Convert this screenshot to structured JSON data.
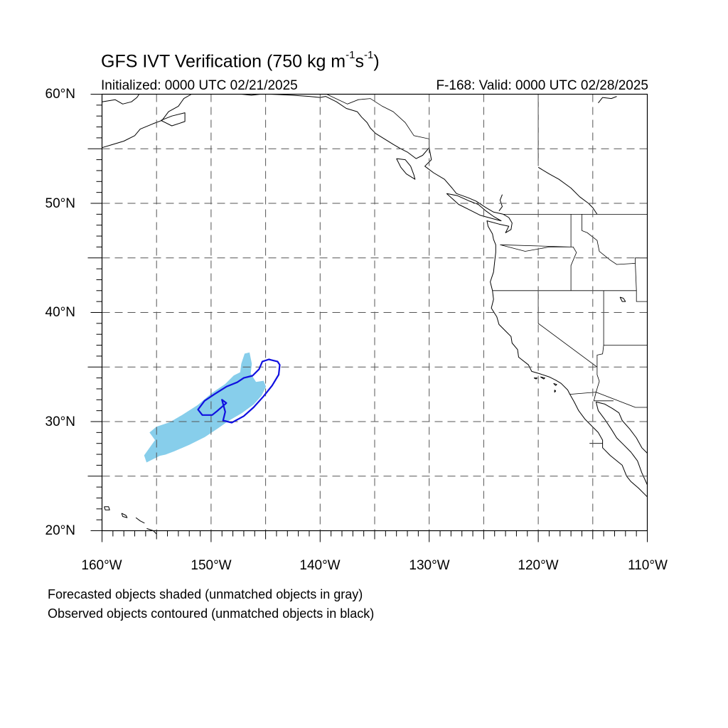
{
  "map": {
    "title_main": "GFS IVT Verification (750 kg m",
    "title_sup1": "-1",
    "title_mid": "s",
    "title_sup2": "-1",
    "title_end": ")",
    "initialized": "Initialized: 0000 UTC 02/21/2025",
    "valid": "F-168: Valid: 0000 UTC 02/28/2025",
    "extent": {
      "lon": [
        -160,
        -110
      ],
      "lat": [
        20,
        60
      ]
    },
    "lat_labels": [
      "60°N",
      "50°N",
      "40°N",
      "30°N",
      "20°N"
    ],
    "lon_labels": [
      "160°W",
      "150°W",
      "140°W",
      "130°W",
      "120°W",
      "110°W"
    ],
    "grid_spacing_deg": 5,
    "grid_style": "dashed",
    "notes": [
      "Forecasted objects shaded (unmatched objects in gray)",
      "Observed objects contoured (unmatched objects in black)"
    ],
    "colors": {
      "forecast_fill": "#87ceeb",
      "observed_contour": "#1010e0",
      "coastline": "#000000",
      "grid": "#555555"
    },
    "forecast_object": [
      [
        -155.9,
        26.3
      ],
      [
        -155.3,
        26.6
      ],
      [
        -154.7,
        26.9
      ],
      [
        -154.2,
        27.0
      ],
      [
        -153.4,
        27.3
      ],
      [
        -152.0,
        27.9
      ],
      [
        -150.6,
        28.6
      ],
      [
        -149.4,
        29.4
      ],
      [
        -148.4,
        30.1
      ],
      [
        -147.2,
        30.8
      ],
      [
        -146.1,
        31.6
      ],
      [
        -145.4,
        32.4
      ],
      [
        -145.0,
        33.2
      ],
      [
        -145.2,
        33.7
      ],
      [
        -145.9,
        33.6
      ],
      [
        -146.4,
        34.4
      ],
      [
        -146.3,
        35.3
      ],
      [
        -146.5,
        36.3
      ],
      [
        -146.9,
        36.2
      ],
      [
        -147.2,
        35.3
      ],
      [
        -147.3,
        34.5
      ],
      [
        -147.9,
        34.2
      ],
      [
        -148.7,
        33.4
      ],
      [
        -149.9,
        32.6
      ],
      [
        -151.2,
        31.5
      ],
      [
        -152.6,
        30.6
      ],
      [
        -153.8,
        29.9
      ],
      [
        -155.0,
        29.5
      ],
      [
        -155.6,
        29.0
      ],
      [
        -155.1,
        28.3
      ],
      [
        -155.6,
        27.6
      ],
      [
        -156.1,
        26.9
      ]
    ],
    "observed_object": [
      [
        -143.9,
        35.5
      ],
      [
        -144.7,
        35.7
      ],
      [
        -145.3,
        35.5
      ],
      [
        -145.6,
        34.8
      ],
      [
        -146.2,
        34.2
      ],
      [
        -147.0,
        34.0
      ],
      [
        -147.6,
        33.6
      ],
      [
        -148.6,
        33.2
      ],
      [
        -149.7,
        32.5
      ],
      [
        -150.6,
        31.9
      ],
      [
        -151.2,
        31.1
      ],
      [
        -150.8,
        30.6
      ],
      [
        -149.9,
        30.6
      ],
      [
        -149.4,
        31.0
      ],
      [
        -148.6,
        31.7
      ],
      [
        -149.0,
        32.0
      ],
      [
        -148.7,
        30.9
      ],
      [
        -148.9,
        30.1
      ],
      [
        -148.1,
        29.9
      ],
      [
        -147.0,
        30.5
      ],
      [
        -146.1,
        31.3
      ],
      [
        -145.2,
        32.3
      ],
      [
        -144.4,
        33.3
      ],
      [
        -143.8,
        34.3
      ],
      [
        -143.7,
        35.2
      ]
    ],
    "coastlines": [
      [
        [
          -160,
          55.1
        ],
        [
          -159,
          55.4
        ],
        [
          -158,
          55.7
        ],
        [
          -157,
          56.2
        ],
        [
          -156.5,
          56.8
        ],
        [
          -155.3,
          57.3
        ],
        [
          -154.5,
          57.6
        ],
        [
          -153.9,
          58.4
        ],
        [
          -153,
          58.9
        ],
        [
          -152.5,
          59.6
        ],
        [
          -151.8,
          60
        ]
      ],
      [
        [
          -154.6,
          57.6
        ],
        [
          -153.6,
          58.0
        ],
        [
          -152.4,
          58.3
        ],
        [
          -152.4,
          57.5
        ],
        [
          -153.6,
          57.1
        ],
        [
          -154.6,
          57.6
        ]
      ],
      [
        [
          -160,
          59.3
        ],
        [
          -158.8,
          59.5
        ],
        [
          -158.1,
          59.1
        ],
        [
          -157.3,
          59.3
        ],
        [
          -156.8,
          59.7
        ],
        [
          -156.6,
          60
        ]
      ],
      [
        [
          -147.2,
          60
        ],
        [
          -146.3,
          59.9
        ],
        [
          -145.5,
          60
        ],
        [
          -144.5,
          60
        ],
        [
          -142.5,
          59.9
        ],
        [
          -141,
          59.8
        ],
        [
          -140,
          59.7
        ],
        [
          -139.5,
          59.8
        ],
        [
          -138.5,
          59.3
        ],
        [
          -137.6,
          58.7
        ],
        [
          -136.6,
          58.4
        ],
        [
          -136.2,
          57.9
        ],
        [
          -135.7,
          57.4
        ],
        [
          -135.4,
          56.9
        ],
        [
          -134.9,
          56.4
        ],
        [
          -134.1,
          55.9
        ],
        [
          -133.3,
          55.4
        ],
        [
          -132.6,
          55.0
        ],
        [
          -132,
          54.7
        ],
        [
          -131.2,
          54.1
        ],
        [
          -130.6,
          54.4
        ],
        [
          -130.0,
          55.1
        ],
        [
          -129.8,
          54.0
        ],
        [
          -130.4,
          53.4
        ],
        [
          -129.6,
          52.8
        ],
        [
          -128.6,
          52.2
        ],
        [
          -127.9,
          51.4
        ],
        [
          -127.5,
          50.9
        ],
        [
          -126.4,
          50.5
        ],
        [
          -125.7,
          50.2
        ],
        [
          -124.8,
          49.6
        ],
        [
          -124.1,
          49.2
        ],
        [
          -123.2,
          49.0
        ]
      ],
      [
        [
          -133.0,
          54.1
        ],
        [
          -132.2,
          54.0
        ],
        [
          -131.7,
          53.4
        ],
        [
          -131.4,
          52.6
        ],
        [
          -131.3,
          52.2
        ],
        [
          -132.1,
          52.7
        ],
        [
          -132.6,
          53.3
        ],
        [
          -133.0,
          54.1
        ]
      ],
      [
        [
          -128.4,
          50.9
        ],
        [
          -127.4,
          50.7
        ],
        [
          -126.3,
          50.2
        ],
        [
          -125.5,
          49.9
        ],
        [
          -124.8,
          49.3
        ],
        [
          -124.1,
          48.8
        ],
        [
          -123.4,
          48.4
        ],
        [
          -124.2,
          48.6
        ],
        [
          -125.3,
          48.9
        ],
        [
          -126.3,
          49.4
        ],
        [
          -127.3,
          49.9
        ],
        [
          -128.4,
          50.9
        ]
      ],
      [
        [
          -123.2,
          49.0
        ],
        [
          -122.7,
          48.7
        ],
        [
          -122.4,
          48.2
        ],
        [
          -122.5,
          47.6
        ],
        [
          -123.0,
          47.3
        ],
        [
          -122.7,
          47.9
        ],
        [
          -123.6,
          48.1
        ],
        [
          -124.7,
          48.4
        ],
        [
          -124.6,
          47.9
        ],
        [
          -124.2,
          47.2
        ],
        [
          -124.1,
          46.7
        ],
        [
          -123.9,
          46.2
        ],
        [
          -123.9,
          45.5
        ],
        [
          -124.0,
          44.6
        ],
        [
          -124.1,
          43.7
        ],
        [
          -124.4,
          42.8
        ],
        [
          -124.2,
          42.0
        ],
        [
          -124.1,
          41.2
        ],
        [
          -124.3,
          40.4
        ],
        [
          -123.8,
          39.6
        ],
        [
          -123.6,
          38.9
        ],
        [
          -122.9,
          38.2
        ],
        [
          -122.5,
          37.8
        ],
        [
          -122.4,
          37.2
        ],
        [
          -121.9,
          36.6
        ],
        [
          -121.8,
          35.9
        ],
        [
          -120.9,
          35.2
        ],
        [
          -120.6,
          34.6
        ],
        [
          -119.9,
          34.4
        ],
        [
          -119.0,
          34.1
        ],
        [
          -118.4,
          33.8
        ],
        [
          -117.9,
          33.5
        ],
        [
          -117.3,
          32.9
        ],
        [
          -117.1,
          32.5
        ],
        [
          -116.7,
          31.8
        ],
        [
          -116.3,
          31.0
        ],
        [
          -115.7,
          30.2
        ],
        [
          -115.1,
          29.6
        ],
        [
          -114.5,
          29.0
        ],
        [
          -114.1,
          28.3
        ],
        [
          -114.1,
          27.6
        ],
        [
          -113.4,
          26.9
        ],
        [
          -112.3,
          26.0
        ],
        [
          -111.9,
          25.0
        ],
        [
          -111.5,
          24.5
        ],
        [
          -110.8,
          23.9
        ],
        [
          -110.2,
          23.3
        ],
        [
          -110,
          23.1
        ]
      ],
      [
        [
          -114.7,
          31.8
        ],
        [
          -114.5,
          31.0
        ],
        [
          -113.9,
          30.2
        ],
        [
          -113.3,
          29.3
        ],
        [
          -112.8,
          28.5
        ],
        [
          -112.2,
          27.9
        ],
        [
          -111.5,
          27.2
        ],
        [
          -110.9,
          26.4
        ],
        [
          -110.5,
          25.3
        ],
        [
          -110,
          24.2
        ]
      ],
      [
        [
          -114.7,
          31.8
        ],
        [
          -113.9,
          31.6
        ],
        [
          -113.2,
          31.2
        ],
        [
          -112.6,
          30.8
        ],
        [
          -112.3,
          30.1
        ],
        [
          -111.6,
          29.3
        ],
        [
          -111.0,
          28.5
        ],
        [
          -110.5,
          27.6
        ],
        [
          -110,
          27.1
        ]
      ],
      [
        [
          -112.8,
          59.8
        ],
        [
          -113.3,
          59.6
        ],
        [
          -114.1,
          59.7
        ],
        [
          -114.5,
          59.2
        ]
      ],
      [
        [
          -120.0,
          53.3
        ],
        [
          -119.0,
          52.7
        ],
        [
          -118.1,
          52.2
        ],
        [
          -117.0,
          51.4
        ],
        [
          -116.2,
          50.6
        ],
        [
          -115.4,
          50.0
        ],
        [
          -115.0,
          49.6
        ],
        [
          -114.6,
          49.0
        ]
      ],
      [
        [
          -123.3,
          50.8
        ],
        [
          -123.5,
          50.3
        ],
        [
          -123.3,
          49.7
        ],
        [
          -123.6,
          49.3
        ]
      ],
      [
        [
          -156.9,
          21.2
        ],
        [
          -156.5,
          20.9
        ],
        [
          -156.1,
          20.7
        ]
      ],
      [
        [
          -155.9,
          20.2
        ],
        [
          -155.3,
          20.0
        ],
        [
          -155.0,
          19.7
        ]
      ],
      [
        [
          -159.8,
          22.2
        ],
        [
          -159.4,
          22.2
        ],
        [
          -159.3,
          21.9
        ],
        [
          -159.7,
          21.9
        ],
        [
          -159.8,
          22.2
        ]
      ],
      [
        [
          -158.2,
          21.6
        ],
        [
          -157.8,
          21.4
        ],
        [
          -157.7,
          21.2
        ],
        [
          -158.1,
          21.3
        ],
        [
          -158.2,
          21.6
        ]
      ],
      [
        [
          -118.6,
          33.5
        ],
        [
          -118.3,
          33.4
        ],
        [
          -118.4,
          33.3
        ],
        [
          -118.6,
          33.5
        ]
      ],
      [
        [
          -119.8,
          34.1
        ],
        [
          -119.4,
          34.0
        ],
        [
          -119.5,
          33.9
        ],
        [
          -119.8,
          34.1
        ]
      ],
      [
        [
          -120.4,
          34.0
        ],
        [
          -120.1,
          34.0
        ],
        [
          -120.2,
          33.9
        ],
        [
          -120.4,
          34.0
        ]
      ],
      [
        [
          -118.5,
          32.9
        ],
        [
          -118.4,
          32.8
        ],
        [
          -118.5,
          32.7
        ],
        [
          -118.5,
          32.9
        ]
      ],
      [
        [
          -112.5,
          41.4
        ],
        [
          -112.2,
          41.3
        ],
        [
          -112.0,
          41.0
        ],
        [
          -112.3,
          41.0
        ],
        [
          -112.5,
          41.4
        ]
      ]
    ],
    "boundaries": [
      [
        [
          -123.2,
          49.0
        ],
        [
          -110,
          49.0
        ]
      ],
      [
        [
          -141,
          60
        ],
        [
          -141,
          60
        ]
      ],
      [
        [
          -139.4,
          60
        ],
        [
          -137.5,
          59.1
        ],
        [
          -136.5,
          59.5
        ],
        [
          -135.4,
          59.6
        ],
        [
          -134.3,
          58.9
        ],
        [
          -133.3,
          58.4
        ],
        [
          -132.2,
          57.4
        ],
        [
          -131.4,
          56.2
        ],
        [
          -130.0,
          55.9
        ],
        [
          -130.0,
          55.1
        ]
      ],
      [
        [
          -120,
          60
        ],
        [
          -120,
          53.9
        ]
      ],
      [
        [
          -124.2,
          42.0
        ],
        [
          -117.0,
          42.0
        ],
        [
          -111.0,
          42.0
        ],
        [
          -111.0,
          41.0
        ],
        [
          -110,
          41.0
        ]
      ],
      [
        [
          -117.0,
          42.0
        ],
        [
          -117.0,
          44.3
        ],
        [
          -116.5,
          45.5
        ],
        [
          -116.8,
          46.0
        ],
        [
          -117.0,
          46.0
        ],
        [
          -123.5,
          46.2
        ],
        [
          -121.2,
          45.6
        ],
        [
          -119.0,
          46.0
        ],
        [
          -117.0,
          46.0
        ]
      ],
      [
        [
          -117.0,
          49.0
        ],
        [
          -117.0,
          46.0
        ]
      ],
      [
        [
          -116.0,
          49.0
        ],
        [
          -116.0,
          48.0
        ],
        [
          -116.0,
          47.5
        ],
        [
          -115.5,
          47.3
        ],
        [
          -114.6,
          46.6
        ],
        [
          -114.4,
          45.6
        ],
        [
          -113.4,
          44.8
        ],
        [
          -112.8,
          44.4
        ],
        [
          -111.1,
          44.5
        ],
        [
          -111.1,
          45.0
        ],
        [
          -110,
          45.0
        ]
      ],
      [
        [
          -111.1,
          44.5
        ],
        [
          -111.0,
          42.0
        ]
      ],
      [
        [
          -120.0,
          42.0
        ],
        [
          -120.0,
          39.0
        ],
        [
          -114.6,
          35.0
        ],
        [
          -114.6,
          34.3
        ],
        [
          -114.4,
          33.7
        ],
        [
          -114.7,
          32.7
        ],
        [
          -111.1,
          31.3
        ],
        [
          -110,
          31.3
        ]
      ],
      [
        [
          -114.0,
          42.0
        ],
        [
          -114.0,
          37.0
        ],
        [
          -114.1,
          36.2
        ],
        [
          -114.6,
          36.1
        ],
        [
          -114.6,
          35.0
        ]
      ],
      [
        [
          -114.0,
          37.0
        ],
        [
          -110,
          37.0
        ]
      ],
      [
        [
          -117.1,
          32.5
        ],
        [
          -114.7,
          32.7
        ]
      ],
      [
        [
          -114.7,
          32.7
        ],
        [
          -114.9,
          31.9
        ],
        [
          -113.1,
          31.9
        ]
      ],
      [
        [
          -115.3,
          28.0
        ],
        [
          -114.1,
          28.0
        ]
      ]
    ]
  }
}
